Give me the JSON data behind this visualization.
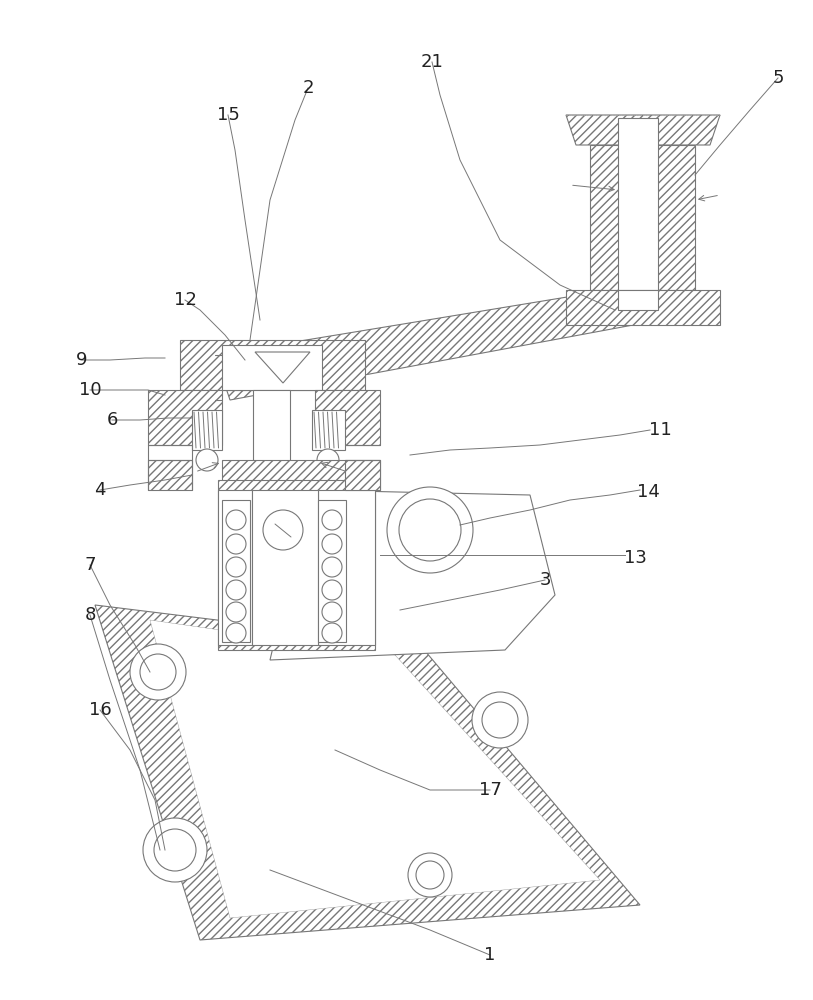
{
  "figure_width": 8.13,
  "figure_height": 10.0,
  "dpi": 100,
  "bg_color": "#ffffff",
  "ec": "#777777",
  "lw": 0.8,
  "hatch": "////",
  "label_fontsize": 13,
  "label_color": "#222222"
}
